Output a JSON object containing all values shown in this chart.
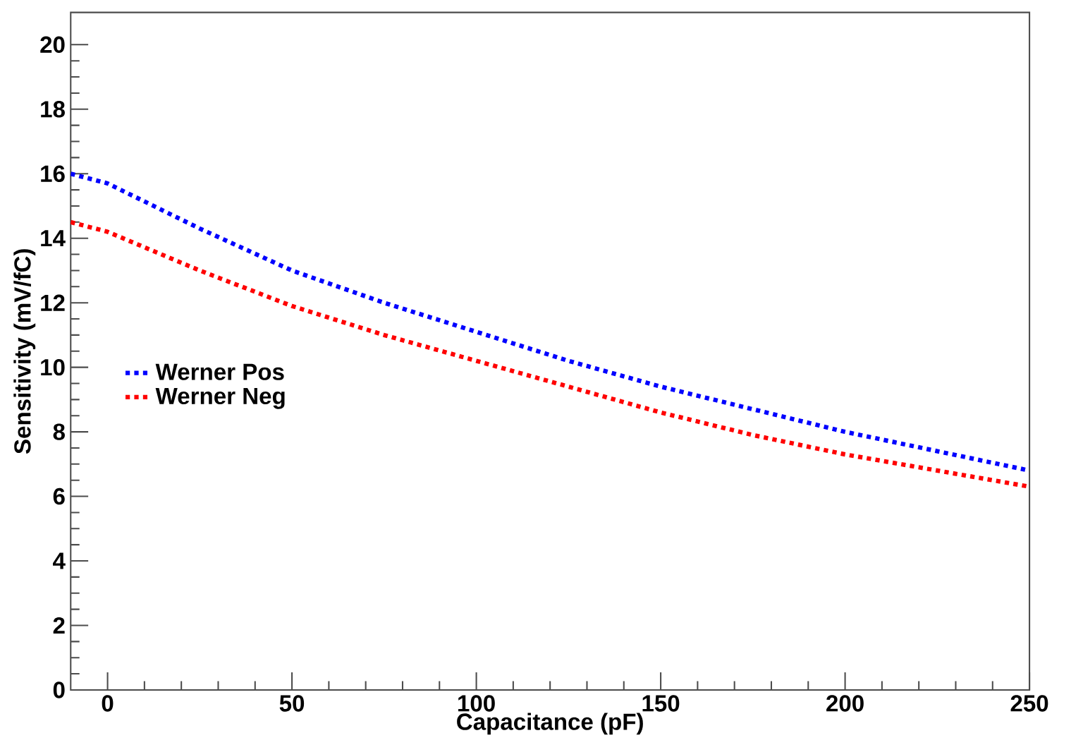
{
  "chart_data": {
    "type": "line",
    "xlabel": "Capacitance (pF)",
    "ylabel": "Sensitivity (mV/fC)",
    "x": [
      -10,
      0,
      25,
      50,
      75,
      100,
      125,
      150,
      175,
      200,
      225,
      250
    ],
    "series": [
      {
        "name": "Werner Pos",
        "color": "#0000ff",
        "values": [
          16.0,
          15.7,
          14.3,
          13.0,
          12.0,
          11.1,
          10.2,
          9.4,
          8.7,
          8.0,
          7.4,
          6.8
        ]
      },
      {
        "name": "Werner Neg",
        "color": "#ff0000",
        "values": [
          14.5,
          14.2,
          13.0,
          11.9,
          11.0,
          10.2,
          9.4,
          8.6,
          7.9,
          7.3,
          6.8,
          6.3
        ]
      }
    ],
    "xlim": [
      -10,
      250
    ],
    "ylim": [
      0,
      21
    ],
    "xticks": [
      0,
      50,
      100,
      150,
      200,
      250
    ],
    "yticks": [
      0,
      2,
      4,
      6,
      8,
      10,
      12,
      14,
      16,
      18,
      20
    ],
    "legend": "left",
    "line_style": "dotted",
    "marker": "none",
    "grid": false
  }
}
